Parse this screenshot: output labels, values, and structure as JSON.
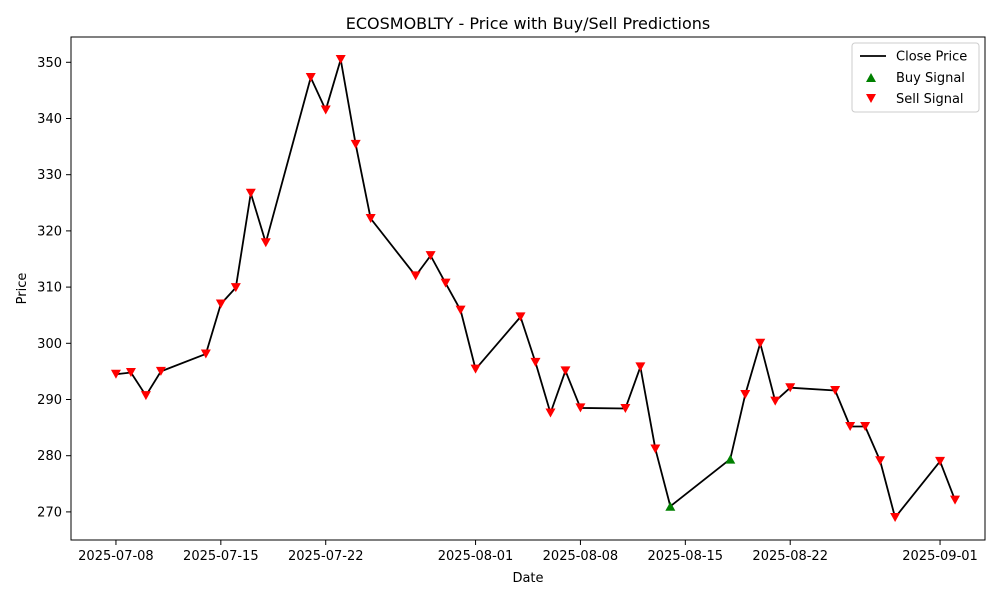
{
  "chart_data": {
    "type": "line",
    "title": "ECOSMOBLTY - Price with Buy/Sell Predictions",
    "xlabel": "Date",
    "ylabel": "Price",
    "x_ticks": [
      "2025-07-08",
      "2025-07-15",
      "2025-07-22",
      "2025-08-01",
      "2025-08-08",
      "2025-08-15",
      "2025-08-22",
      "2025-09-01"
    ],
    "y_ticks": [
      270,
      280,
      290,
      300,
      310,
      320,
      330,
      340,
      350
    ],
    "xlim": [
      "2025-07-05",
      "2025-09-04"
    ],
    "ylim": [
      265,
      354.5
    ],
    "legend": {
      "position": "top-right",
      "entries": [
        "Close Price",
        "Buy Signal",
        "Sell Signal"
      ]
    },
    "colors": {
      "close": "#000000",
      "buy": "#008000",
      "sell": "#ff0000"
    },
    "series": [
      {
        "name": "Close Price",
        "points": [
          {
            "x": "2025-07-08",
            "y": 294.5,
            "signal": "sell"
          },
          {
            "x": "2025-07-09",
            "y": 294.8,
            "signal": "sell"
          },
          {
            "x": "2025-07-10",
            "y": 290.7,
            "signal": "sell"
          },
          {
            "x": "2025-07-11",
            "y": 295.0,
            "signal": "sell"
          },
          {
            "x": "2025-07-14",
            "y": 298.1,
            "signal": "sell"
          },
          {
            "x": "2025-07-15",
            "y": 307.0,
            "signal": "sell"
          },
          {
            "x": "2025-07-16",
            "y": 309.9,
            "signal": "sell"
          },
          {
            "x": "2025-07-17",
            "y": 326.7,
            "signal": "sell"
          },
          {
            "x": "2025-07-18",
            "y": 317.9,
            "signal": "sell"
          },
          {
            "x": "2025-07-21",
            "y": 347.3,
            "signal": "sell"
          },
          {
            "x": "2025-07-22",
            "y": 341.5,
            "signal": "sell"
          },
          {
            "x": "2025-07-23",
            "y": 350.5,
            "signal": "sell"
          },
          {
            "x": "2025-07-24",
            "y": 335.4,
            "signal": "sell"
          },
          {
            "x": "2025-07-25",
            "y": 322.2,
            "signal": "sell"
          },
          {
            "x": "2025-07-28",
            "y": 312.0,
            "signal": "sell"
          },
          {
            "x": "2025-07-29",
            "y": 315.6,
            "signal": "sell"
          },
          {
            "x": "2025-07-30",
            "y": 310.7,
            "signal": "sell"
          },
          {
            "x": "2025-07-31",
            "y": 305.9,
            "signal": "sell"
          },
          {
            "x": "2025-08-01",
            "y": 295.4,
            "signal": "sell"
          },
          {
            "x": "2025-08-04",
            "y": 304.7,
            "signal": "sell"
          },
          {
            "x": "2025-08-05",
            "y": 296.6,
            "signal": "sell"
          },
          {
            "x": "2025-08-06",
            "y": 287.6,
            "signal": "sell"
          },
          {
            "x": "2025-08-07",
            "y": 295.1,
            "signal": "sell"
          },
          {
            "x": "2025-08-08",
            "y": 288.5,
            "signal": "sell"
          },
          {
            "x": "2025-08-11",
            "y": 288.4,
            "signal": "sell"
          },
          {
            "x": "2025-08-12",
            "y": 295.8,
            "signal": "sell"
          },
          {
            "x": "2025-08-13",
            "y": 281.2,
            "signal": "sell"
          },
          {
            "x": "2025-08-14",
            "y": 271.0,
            "signal": "buy"
          },
          {
            "x": "2025-08-18",
            "y": 279.4,
            "signal": "buy"
          },
          {
            "x": "2025-08-19",
            "y": 290.9,
            "signal": "sell"
          },
          {
            "x": "2025-08-20",
            "y": 300.0,
            "signal": "sell"
          },
          {
            "x": "2025-08-21",
            "y": 289.7,
            "signal": "sell"
          },
          {
            "x": "2025-08-22",
            "y": 292.1,
            "signal": "sell"
          },
          {
            "x": "2025-08-25",
            "y": 291.6,
            "signal": "sell"
          },
          {
            "x": "2025-08-26",
            "y": 285.2,
            "signal": "sell"
          },
          {
            "x": "2025-08-27",
            "y": 285.2,
            "signal": "sell"
          },
          {
            "x": "2025-08-28",
            "y": 279.1,
            "signal": "sell"
          },
          {
            "x": "2025-08-29",
            "y": 269.0,
            "signal": "sell"
          },
          {
            "x": "2025-09-01",
            "y": 279.0,
            "signal": "sell"
          },
          {
            "x": "2025-09-02",
            "y": 272.1,
            "signal": "sell"
          }
        ]
      }
    ]
  }
}
